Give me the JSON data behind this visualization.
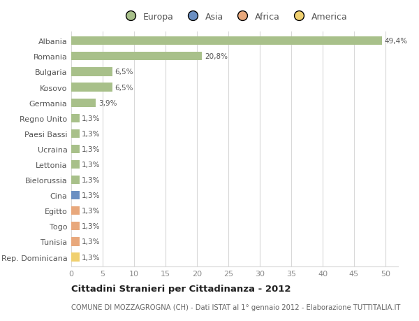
{
  "categories": [
    "Albania",
    "Romania",
    "Bulgaria",
    "Kosovo",
    "Germania",
    "Regno Unito",
    "Paesi Bassi",
    "Ucraina",
    "Lettonia",
    "Bielorussia",
    "Cina",
    "Egitto",
    "Togo",
    "Tunisia",
    "Rep. Dominicana"
  ],
  "values": [
    49.4,
    20.8,
    6.5,
    6.5,
    3.9,
    1.3,
    1.3,
    1.3,
    1.3,
    1.3,
    1.3,
    1.3,
    1.3,
    1.3,
    1.3
  ],
  "labels": [
    "49,4%",
    "20,8%",
    "6,5%",
    "6,5%",
    "3,9%",
    "1,3%",
    "1,3%",
    "1,3%",
    "1,3%",
    "1,3%",
    "1,3%",
    "1,3%",
    "1,3%",
    "1,3%",
    "1,3%"
  ],
  "bar_colors": [
    "#a8c08a",
    "#a8c08a",
    "#a8c08a",
    "#a8c08a",
    "#a8c08a",
    "#a8c08a",
    "#a8c08a",
    "#a8c08a",
    "#a8c08a",
    "#a8c08a",
    "#6b8fc2",
    "#e8a87c",
    "#e8a87c",
    "#e8a87c",
    "#f0d070"
  ],
  "legend_labels": [
    "Europa",
    "Asia",
    "Africa",
    "America"
  ],
  "legend_colors": [
    "#a8c08a",
    "#6b8fc2",
    "#e8a87c",
    "#f0d070"
  ],
  "xlim": [
    0,
    52
  ],
  "xticks": [
    0,
    5,
    10,
    15,
    20,
    25,
    30,
    35,
    40,
    45,
    50
  ],
  "title": "Cittadini Stranieri per Cittadinanza - 2012",
  "subtitle": "COMUNE DI MOZZAGROGNA (CH) - Dati ISTAT al 1° gennaio 2012 - Elaborazione TUTTITALIA.IT",
  "background_color": "#ffffff",
  "grid_color": "#d8d8d8",
  "bar_height": 0.55,
  "figsize": [
    6.0,
    4.6
  ],
  "dpi": 100
}
